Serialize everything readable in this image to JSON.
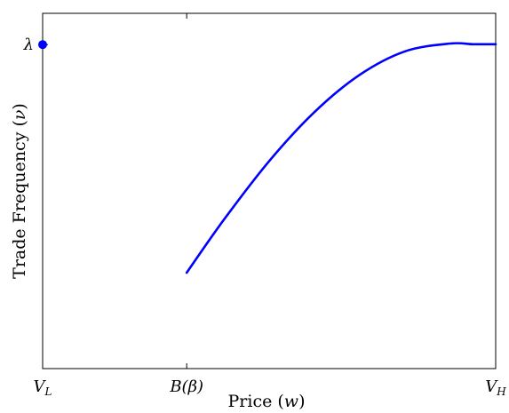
{
  "chart_data": {
    "type": "line",
    "xlabel": "Price (w)",
    "ylabel": "Trade Frequency (ν)",
    "xlim": [
      0,
      1
    ],
    "ylim": [
      0,
      1
    ],
    "x_ticks": [
      {
        "label_main": "V",
        "label_sub": "L",
        "value": 0.0
      },
      {
        "label_main": "B(β)",
        "label_sub": "",
        "value": 0.318
      },
      {
        "label_main": "V",
        "label_sub": "H",
        "value": 1.0
      }
    ],
    "y_ticks": [
      {
        "label_main": "λ",
        "label_sub": "",
        "value": 0.912
      }
    ],
    "series": [
      {
        "color": "#0000ff",
        "x": [
          0.318,
          0.4,
          0.5,
          0.6,
          0.7,
          0.8,
          0.9,
          0.95,
          1.0
        ],
        "y": [
          0.27,
          0.419,
          0.584,
          0.722,
          0.827,
          0.893,
          0.915,
          0.913,
          0.913
        ]
      }
    ],
    "points": [
      {
        "x": 0.0,
        "y": 0.912,
        "color": "#0000ff"
      }
    ],
    "grid": false
  }
}
